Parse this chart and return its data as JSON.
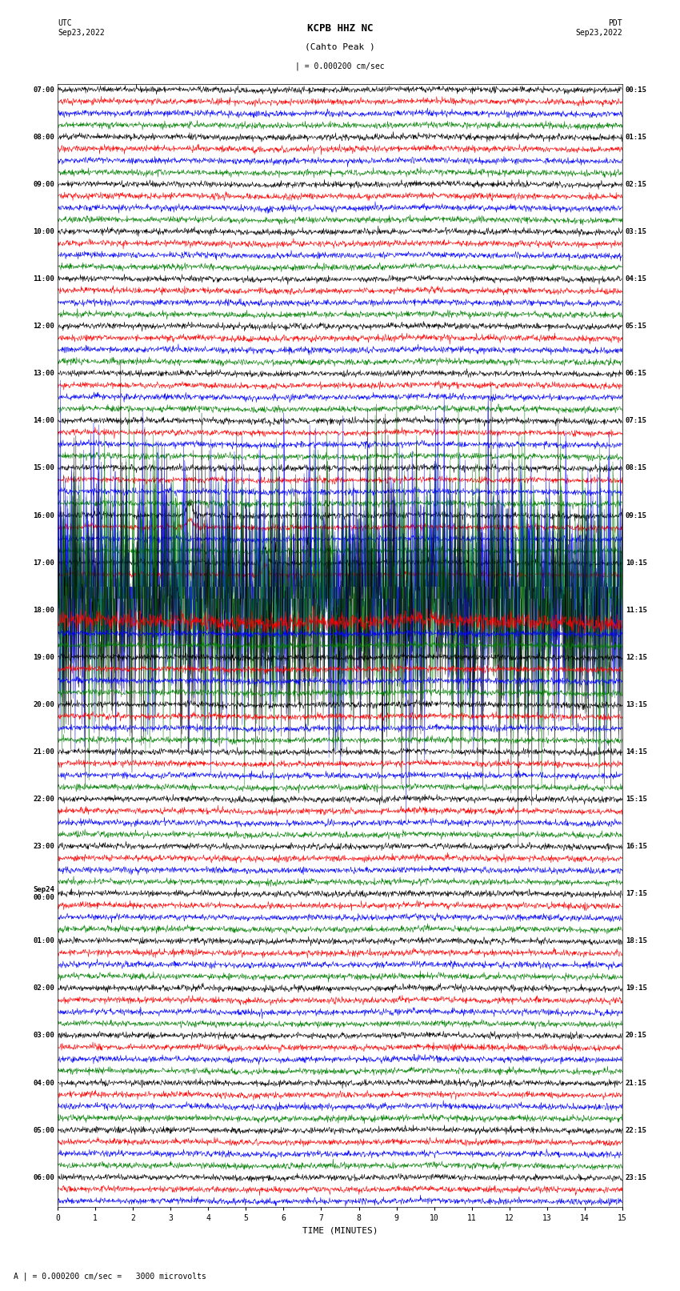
{
  "title": "KCPB HHZ NC",
  "subtitle": "(Cahto Peak )",
  "left_header": "UTC\nSep23,2022",
  "right_header": "PDT\nSep23,2022",
  "scale_label": "| = 0.000200 cm/sec",
  "bottom_label": "A | = 0.000200 cm/sec =   3000 microvolts",
  "xlabel": "TIME (MINUTES)",
  "xticks": [
    0,
    1,
    2,
    3,
    4,
    5,
    6,
    7,
    8,
    9,
    10,
    11,
    12,
    13,
    14,
    15
  ],
  "bg_color": "#ffffff",
  "trace_colors": [
    "#000000",
    "#ff0000",
    "#0000ff",
    "#008000"
  ],
  "left_times": [
    "07:00",
    "",
    "",
    "",
    "08:00",
    "",
    "",
    "",
    "09:00",
    "",
    "",
    "",
    "10:00",
    "",
    "",
    "",
    "11:00",
    "",
    "",
    "",
    "12:00",
    "",
    "",
    "",
    "13:00",
    "",
    "",
    "",
    "14:00",
    "",
    "",
    "",
    "15:00",
    "",
    "",
    "",
    "16:00",
    "",
    "",
    "",
    "17:00",
    "",
    "",
    "",
    "18:00",
    "",
    "",
    "",
    "19:00",
    "",
    "",
    "",
    "20:00",
    "",
    "",
    "",
    "21:00",
    "",
    "",
    "",
    "22:00",
    "",
    "",
    "",
    "23:00",
    "",
    "",
    "",
    "Sep24\n00:00",
    "",
    "",
    "",
    "01:00",
    "",
    "",
    "",
    "02:00",
    "",
    "",
    "",
    "03:00",
    "",
    "",
    "",
    "04:00",
    "",
    "",
    "",
    "05:00",
    "",
    "",
    "",
    "06:00",
    "",
    ""
  ],
  "right_times": [
    "00:15",
    "",
    "",
    "",
    "01:15",
    "",
    "",
    "",
    "02:15",
    "",
    "",
    "",
    "03:15",
    "",
    "",
    "",
    "04:15",
    "",
    "",
    "",
    "05:15",
    "",
    "",
    "",
    "06:15",
    "",
    "",
    "",
    "07:15",
    "",
    "",
    "",
    "08:15",
    "",
    "",
    "",
    "09:15",
    "",
    "",
    "",
    "10:15",
    "",
    "",
    "",
    "11:15",
    "",
    "",
    "",
    "12:15",
    "",
    "",
    "",
    "13:15",
    "",
    "",
    "",
    "14:15",
    "",
    "",
    "",
    "15:15",
    "",
    "",
    "",
    "16:15",
    "",
    "",
    "",
    "17:15",
    "",
    "",
    "",
    "18:15",
    "",
    "",
    "",
    "19:15",
    "",
    "",
    "",
    "20:15",
    "",
    "",
    "",
    "21:15",
    "",
    "",
    "",
    "22:15",
    "",
    "",
    "",
    "23:15",
    "",
    ""
  ],
  "n_rows": 95,
  "seed": 42
}
